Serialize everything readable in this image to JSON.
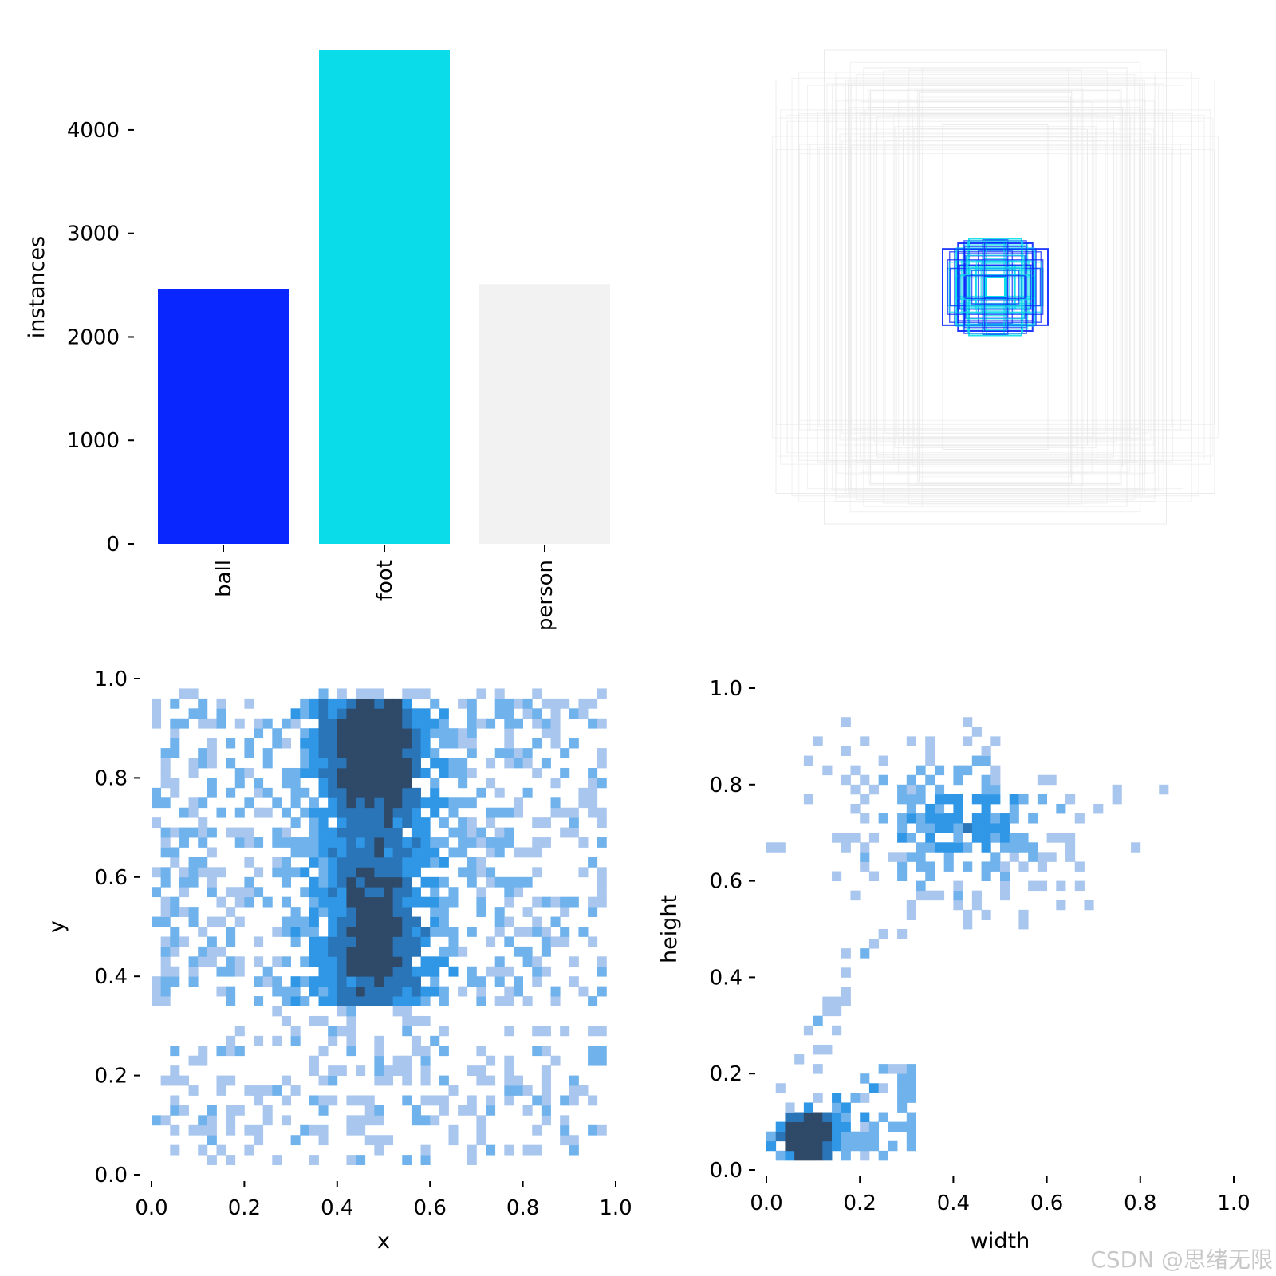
{
  "chart_data": [
    {
      "type": "bar",
      "ylabel": "instances",
      "categories": [
        "ball",
        "foot",
        "person"
      ],
      "values": [
        2460,
        4770,
        2510
      ],
      "colors": [
        "#0a26ff",
        "#0adcea",
        "#f2f2f2"
      ],
      "ylim": [
        0,
        4770
      ],
      "yticks": [
        0,
        1000,
        2000,
        3000,
        4000
      ],
      "grid": false
    },
    {
      "type": "box-overlay",
      "description_colors": [
        "#0a26ff",
        "#0adcea",
        "#f2f2f2"
      ],
      "boxes_percent": [
        {
          "class": "person",
          "w": 0.5,
          "h": 0.47
        },
        {
          "class": "person",
          "w": 0.39,
          "h": 0.54
        },
        {
          "class": "person",
          "w": 0.3,
          "h": 0.5
        },
        {
          "class": "person",
          "w": 0.21,
          "h": 0.36
        },
        {
          "class": "person",
          "w": 0.12,
          "h": 0.37
        },
        {
          "class": "person",
          "w": 0.29,
          "h": 0.41
        },
        {
          "class": "ball",
          "w": 0.085,
          "h": 0.1
        },
        {
          "class": "ball",
          "w": 0.12,
          "h": 0.087
        },
        {
          "class": "ball",
          "w": 0.07,
          "h": 0.085
        },
        {
          "class": "foot",
          "w": 0.045,
          "h": 0.05
        },
        {
          "class": "foot",
          "w": 0.025,
          "h": 0.025
        },
        {
          "class": "foot",
          "w": 0.06,
          "h": 0.11
        }
      ]
    },
    {
      "type": "heatmap",
      "xlabel": "x",
      "ylabel": "y",
      "xlim": [
        0,
        1
      ],
      "ylim": [
        0,
        1
      ],
      "xticks": [
        "0.0",
        "0.2",
        "0.4",
        "0.6",
        "0.8",
        "1.0"
      ],
      "yticks": [
        "0.0",
        "0.2",
        "0.4",
        "0.6",
        "0.8",
        "1.0"
      ],
      "bins": 50,
      "density_peaks": [
        {
          "x": 0.47,
          "y": 0.85,
          "weight": 1.0
        },
        {
          "x": 0.48,
          "y": 0.55,
          "weight": 0.8
        },
        {
          "x": 0.47,
          "y": 0.4,
          "weight": 0.7
        }
      ]
    },
    {
      "type": "heatmap",
      "xlabel": "width",
      "ylabel": "height",
      "xlim": [
        0,
        1
      ],
      "ylim": [
        0,
        1
      ],
      "xticks": [
        "0.0",
        "0.2",
        "0.4",
        "0.6",
        "0.8",
        "1.0"
      ],
      "yticks": [
        "0.0",
        "0.2",
        "0.4",
        "0.6",
        "0.8",
        "1.0"
      ],
      "bins": 50,
      "density_peaks": [
        {
          "x": 0.09,
          "y": 0.07,
          "weight": 1.0
        },
        {
          "x": 0.4,
          "y": 0.75,
          "weight": 0.3
        }
      ]
    }
  ],
  "watermark": "CSDN @思绪无限"
}
